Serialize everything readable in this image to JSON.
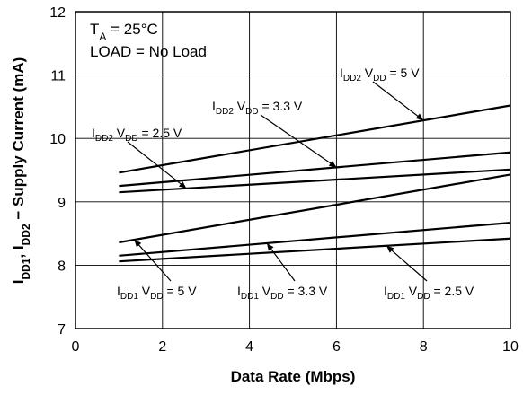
{
  "chart_data": {
    "type": "line",
    "xlabel": "Data Rate (Mbps)",
    "ylabel": "IDD1, IDD2 − Supply Current (mA)",
    "xlim": [
      0,
      10
    ],
    "ylim": [
      7,
      12
    ],
    "xticks": [
      "0",
      "2",
      "4",
      "6",
      "8",
      "10"
    ],
    "yticks": [
      "7",
      "8",
      "9",
      "10",
      "11",
      "12"
    ],
    "grid": true,
    "conditions": [
      "TA = 25°C",
      "LOAD = No Load"
    ],
    "series": [
      {
        "name": "IDD2 VDD = 5 V",
        "x": [
          1,
          10
        ],
        "y": [
          9.46,
          10.52
        ]
      },
      {
        "name": "IDD2 VDD = 3.3 V",
        "x": [
          1,
          10
        ],
        "y": [
          9.25,
          9.78
        ]
      },
      {
        "name": "IDD2 VDD = 2.5 V",
        "x": [
          1,
          10
        ],
        "y": [
          9.15,
          9.51
        ]
      },
      {
        "name": "IDD1 VDD = 5 V",
        "x": [
          1,
          10
        ],
        "y": [
          8.36,
          9.43
        ]
      },
      {
        "name": "IDD1 VDD = 3.3 V",
        "x": [
          1,
          10
        ],
        "y": [
          8.15,
          8.67
        ]
      },
      {
        "name": "IDD1 VDD = 2.5 V",
        "x": [
          1,
          10
        ],
        "y": [
          8.06,
          8.42
        ]
      }
    ],
    "annotations": [
      {
        "series": 0,
        "sub_label": "DD2",
        "v_text": " = 5 V",
        "pointer_x": 8.0
      },
      {
        "series": 1,
        "sub_label": "DD2",
        "v_text": " = 3.3 V",
        "pointer_x": 6.0
      },
      {
        "series": 2,
        "sub_label": "DD2",
        "v_text": " = 2.5 V",
        "pointer_x": 2.55
      },
      {
        "series": 3,
        "sub_label": "DD1",
        "v_text": " = 5 V",
        "pointer_x": 1.35
      },
      {
        "series": 4,
        "sub_label": "DD1",
        "v_text": " = 3.3 V",
        "pointer_x": 4.4
      },
      {
        "series": 5,
        "sub_label": "DD1",
        "v_text": " = 2.5 V",
        "pointer_x": 7.15
      }
    ]
  }
}
